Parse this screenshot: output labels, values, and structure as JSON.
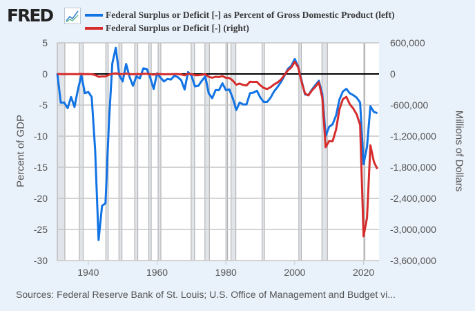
{
  "header": {
    "logo_text": "FRED",
    "logo_icon": "line-chart-icon"
  },
  "source_text": "Sources: Federal Reserve Bank of St. Louis; U.S. Office of Management and Budget vi...",
  "chart_data": {
    "type": "line",
    "xlim": [
      1931,
      2024.5
    ],
    "x_ticks": [
      "1940",
      "1960",
      "1980",
      "2000",
      "2020"
    ],
    "x_tick_values": [
      1940,
      1960,
      1980,
      2000,
      2020
    ],
    "left_axis": {
      "label": "Percent of GDP",
      "ylim": [
        -30,
        5
      ],
      "ticks": [
        5,
        0,
        -5,
        -10,
        -15,
        -20,
        -25,
        -30
      ],
      "tick_labels": [
        "5",
        "0",
        "-5",
        "-10",
        "-15",
        "-20",
        "-25",
        "-30"
      ]
    },
    "right_axis": {
      "label": "Millions of Dollars",
      "ylim": [
        -3600000,
        600000
      ],
      "ticks": [
        600000,
        0,
        -600000,
        -1200000,
        -1800000,
        -2400000,
        -3000000,
        -3600000
      ],
      "tick_labels": [
        "600,000",
        "0",
        "-600,000",
        "-1,200,000",
        "-1,800,000",
        "-2,400,000",
        "-3,000,000",
        "-3,600,000"
      ]
    },
    "grid": true,
    "legend_placement": "top",
    "zero_line": true,
    "shaded_periods": [
      [
        1929.7,
        1933.2
      ],
      [
        1937.4,
        1938.5
      ],
      [
        1945.1,
        1945.8
      ],
      [
        1948.9,
        1949.8
      ],
      [
        1953.5,
        1954.4
      ],
      [
        1957.6,
        1958.3
      ],
      [
        1960.3,
        1961.1
      ],
      [
        1969.9,
        1970.9
      ],
      [
        1973.9,
        1975.2
      ],
      [
        1980.0,
        1980.5
      ],
      [
        1981.5,
        1982.9
      ],
      [
        1990.5,
        1991.2
      ],
      [
        2001.2,
        2001.9
      ],
      [
        2007.9,
        2009.5
      ],
      [
        2020.1,
        2020.3
      ]
    ],
    "x": [
      1931,
      1932,
      1933,
      1934,
      1935,
      1936,
      1937,
      1938,
      1939,
      1940,
      1941,
      1942,
      1943,
      1944,
      1945,
      1946,
      1947,
      1948,
      1949,
      1950,
      1951,
      1952,
      1953,
      1954,
      1955,
      1956,
      1957,
      1958,
      1959,
      1960,
      1961,
      1962,
      1963,
      1964,
      1965,
      1966,
      1967,
      1968,
      1969,
      1970,
      1971,
      1972,
      1973,
      1974,
      1975,
      1976,
      1977,
      1978,
      1979,
      1980,
      1981,
      1982,
      1983,
      1984,
      1985,
      1986,
      1987,
      1988,
      1989,
      1990,
      1991,
      1992,
      1993,
      1994,
      1995,
      1996,
      1997,
      1998,
      1999,
      2000,
      2001,
      2002,
      2003,
      2004,
      2005,
      2006,
      2007,
      2008,
      2009,
      2010,
      2011,
      2012,
      2013,
      2014,
      2015,
      2016,
      2017,
      2018,
      2019,
      2020,
      2021,
      2022,
      2023,
      2024
    ],
    "series": [
      {
        "name": "Federal Surplus or Deficit [-] as Percent of Gross Domestic Product (left)",
        "axis": "left",
        "color": "#1273e4",
        "values": [
          0.1,
          -4.6,
          -4.6,
          -5.5,
          -3.7,
          -5.3,
          -2.5,
          -0.2,
          -3.1,
          -2.9,
          -3.7,
          -12.2,
          -26.7,
          -21.2,
          -20.8,
          -7.8,
          1.7,
          4.2,
          -0.2,
          -1.2,
          1.6,
          -0.5,
          -1.9,
          -0.4,
          -0.7,
          0.9,
          0.8,
          -0.6,
          -2.4,
          0.1,
          -0.6,
          -1.2,
          -0.8,
          -0.9,
          -0.3,
          -0.5,
          -1.0,
          -2.5,
          0.3,
          -0.3,
          -2.0,
          -1.9,
          -1.1,
          -0.4,
          -3.1,
          -3.9,
          -2.6,
          -2.6,
          -1.5,
          -2.6,
          -2.5,
          -3.9,
          -5.8,
          -4.6,
          -4.9,
          -4.9,
          -3.1,
          -3.0,
          -2.7,
          -3.8,
          -4.5,
          -4.5,
          -3.8,
          -2.8,
          -2.1,
          -1.3,
          -0.3,
          0.8,
          1.3,
          2.4,
          1.2,
          -1.1,
          -3.3,
          -3.4,
          -2.5,
          -1.8,
          -1.1,
          -3.2,
          -10.0,
          -8.5,
          -8.1,
          -6.7,
          -4.1,
          -2.8,
          -2.4,
          -3.1,
          -3.4,
          -3.8,
          -4.6,
          -14.5,
          -11.7,
          -5.2,
          -6.1,
          -6.3
        ]
      },
      {
        "name": "Federal Surplus or Deficit [-] (right)",
        "axis": "right",
        "color": "#d62c2c",
        "values": [
          -462,
          -2735,
          -2602,
          -3586,
          -2803,
          -4304,
          -2193,
          -89,
          -2846,
          -2920,
          -4941,
          -20503,
          -54554,
          -47557,
          -47553,
          -15936,
          4018,
          11796,
          580,
          -3119,
          6102,
          -1519,
          -6493,
          -1154,
          -2993,
          3947,
          3412,
          -2769,
          -12849,
          301,
          -3335,
          -7146,
          -4756,
          -5915,
          -1411,
          -3698,
          -8643,
          -25161,
          3242,
          -2842,
          -23033,
          -23373,
          -14908,
          -6135,
          -53242,
          -73732,
          -53659,
          -59185,
          -40726,
          -73830,
          -78968,
          -127977,
          -207802,
          -185367,
          -212308,
          -221227,
          -149730,
          -155178,
          -152639,
          -221036,
          -269238,
          -290321,
          -255051,
          -203186,
          -163952,
          -107431,
          -21884,
          69270,
          125610,
          236241,
          128236,
          -157758,
          -377585,
          -412727,
          -318346,
          -248181,
          -160701,
          -458553,
          -1412688,
          -1294373,
          -1299593,
          -1076573,
          -679775,
          -484793,
          -441960,
          -584651,
          -665802,
          -779137,
          -983594,
          -3131917,
          -2775306,
          -1375905,
          -1693756,
          -1832816
        ]
      }
    ]
  }
}
